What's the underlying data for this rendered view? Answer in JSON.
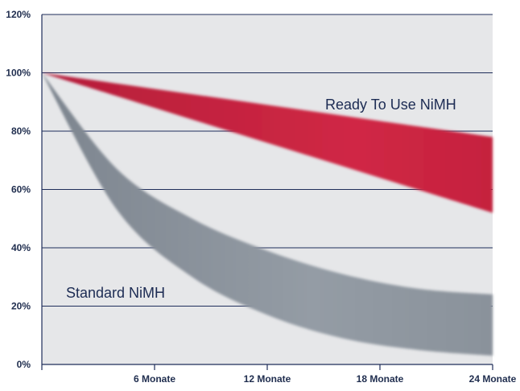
{
  "chart_data": {
    "type": "area",
    "x_ticks": [
      {
        "x": 6,
        "label": "6 Monate"
      },
      {
        "x": 12,
        "label": "12 Monate"
      },
      {
        "x": 18,
        "label": "18 Monate"
      },
      {
        "x": 24,
        "label": "24 Monate"
      }
    ],
    "xlim": [
      0,
      24
    ],
    "y_ticks": [
      {
        "y": 0,
        "label": "0%"
      },
      {
        "y": 20,
        "label": "20%"
      },
      {
        "y": 40,
        "label": "40%"
      },
      {
        "y": 60,
        "label": "60%"
      },
      {
        "y": 80,
        "label": "80%"
      },
      {
        "y": 100,
        "label": "100%"
      },
      {
        "y": 120,
        "label": "120%"
      }
    ],
    "ylim": [
      0,
      120
    ],
    "grid": true,
    "colors": {
      "background": "#e6e7e9",
      "grid": "#1f2d5a",
      "standard": "#8b939c",
      "ready": "#c8243f",
      "text": "#1f2d4e"
    },
    "series": [
      {
        "name": "Ready To Use NiMH",
        "x": [
          0,
          6,
          12,
          18,
          24
        ],
        "upper": [
          100,
          94.5,
          89,
          83.5,
          78
        ],
        "lower": [
          100,
          88,
          76,
          64,
          52
        ]
      },
      {
        "name": "Standard NiMH",
        "x": [
          0,
          4,
          8,
          12,
          16,
          20,
          24
        ],
        "upper": [
          100,
          67,
          50,
          39,
          31,
          26,
          24
        ],
        "lower": [
          100,
          53,
          30,
          17,
          9,
          5,
          3
        ]
      }
    ],
    "annotations": {
      "ready_label": "Ready To Use NiMH",
      "standard_label": "Standard NiMH"
    }
  }
}
